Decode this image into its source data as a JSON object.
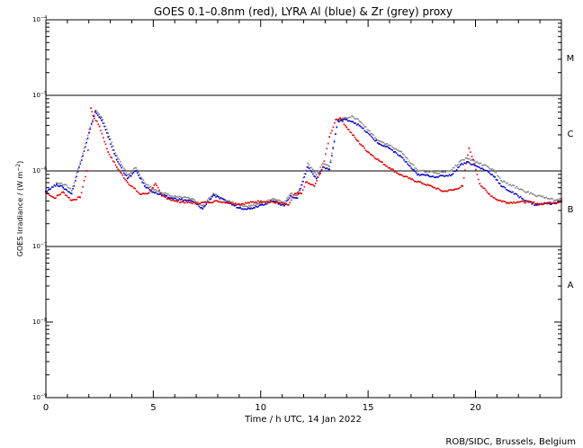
{
  "chart_data": {
    "type": "scatter",
    "title": "GOES 0.1–0.8nm (red), LYRA Al (blue) & Zr (grey) proxy",
    "xlabel": "Time / h UTC, 14 Jan 2022",
    "ylabel_main": "GOES Irradiance / (W m",
    "ylabel_sup": "−2",
    "ylabel_close": ")",
    "credit": "ROB/SIDC, Brussels, Belgium",
    "xlim": [
      0,
      24
    ],
    "ylim_log10": [
      -9,
      -4
    ],
    "y_scale": "log",
    "x_ticks": [
      {
        "value": 0,
        "label": "0"
      },
      {
        "value": 5,
        "label": "5"
      },
      {
        "value": 10,
        "label": "10"
      },
      {
        "value": 15,
        "label": "15"
      },
      {
        "value": 20,
        "label": "20"
      }
    ],
    "y_ticks": [
      {
        "exp": -4,
        "label": "10",
        "sup": "−4"
      },
      {
        "exp": -5,
        "label": "10",
        "sup": "−5"
      },
      {
        "exp": -6,
        "label": "10",
        "sup": "−6"
      },
      {
        "exp": -7,
        "label": "10",
        "sup": "−7"
      },
      {
        "exp": -8,
        "label": "10",
        "sup": "−8"
      }
    ],
    "flare_classes": [
      {
        "label": "M",
        "center_log10": -4.5
      },
      {
        "label": "C",
        "center_log10": -5.5
      },
      {
        "label": "B",
        "center_log10": -6.5
      },
      {
        "label": "A",
        "center_log10": -7.5
      }
    ],
    "class_boundaries_log10": [
      -5,
      -6,
      -7
    ],
    "series": [
      {
        "name": "GOES 0.1-0.8nm",
        "color": "#e00000",
        "x": [
          0.0,
          0.4,
          0.8,
          1.2,
          1.6,
          1.9,
          2.1,
          2.2,
          2.5,
          2.9,
          3.3,
          3.8,
          4.4,
          4.8,
          5.1,
          5.4,
          6.0,
          7.0,
          8.0,
          9.0,
          10.0,
          10.8,
          11.3,
          11.6,
          11.9,
          12.1,
          12.5,
          12.9,
          13.2,
          13.5,
          13.7,
          14.0,
          14.5,
          15.0,
          15.5,
          16.0,
          16.5,
          17.0,
          17.5,
          18.0,
          18.5,
          19.0,
          19.4,
          19.7,
          19.9,
          20.2,
          20.6,
          21.0,
          21.5,
          22.0,
          22.5,
          23.0,
          23.5,
          24.0
        ],
        "log10": [
          -6.28,
          -6.36,
          -6.28,
          -6.39,
          -6.35,
          -6.0,
          -5.17,
          -5.27,
          -5.41,
          -5.75,
          -5.95,
          -6.15,
          -6.31,
          -6.29,
          -6.17,
          -6.33,
          -6.4,
          -6.43,
          -6.4,
          -6.44,
          -6.4,
          -6.42,
          -6.45,
          -6.3,
          -6.3,
          -6.15,
          -6.2,
          -5.95,
          -5.55,
          -5.32,
          -5.3,
          -5.42,
          -5.6,
          -5.75,
          -5.86,
          -5.96,
          -6.05,
          -6.11,
          -6.16,
          -6.21,
          -6.27,
          -6.25,
          -6.2,
          -5.7,
          -5.85,
          -6.17,
          -6.3,
          -6.38,
          -6.42,
          -6.41,
          -6.41,
          -6.44,
          -6.42,
          -6.41
        ]
      },
      {
        "name": "LYRA Al proxy",
        "color": "#0000cc",
        "x": [
          0.0,
          0.5,
          0.8,
          1.2,
          2.3,
          2.6,
          2.9,
          3.3,
          3.8,
          4.2,
          4.6,
          5.0,
          5.8,
          6.8,
          7.3,
          7.8,
          8.5,
          9.0,
          9.5,
          10.0,
          10.6,
          11.1,
          11.4,
          11.7,
          12.2,
          12.6,
          12.9,
          13.2,
          13.6,
          14.0,
          14.3,
          14.6,
          15.5,
          16.0,
          16.2,
          16.5,
          17.3,
          17.8,
          18.2,
          18.9,
          19.3,
          19.6,
          20.6,
          20.9,
          21.2,
          22.4,
          22.8,
          23.3,
          23.7,
          24.0
        ],
        "log10": [
          -6.27,
          -6.18,
          -6.22,
          -6.3,
          -5.22,
          -5.33,
          -5.55,
          -5.85,
          -6.1,
          -6.0,
          -6.2,
          -6.28,
          -6.36,
          -6.4,
          -6.5,
          -6.32,
          -6.42,
          -6.49,
          -6.5,
          -6.45,
          -6.4,
          -6.46,
          -6.33,
          -6.36,
          -5.95,
          -6.1,
          -5.95,
          -5.98,
          -5.34,
          -5.32,
          -5.35,
          -5.4,
          -5.64,
          -5.7,
          -5.75,
          -5.8,
          -6.05,
          -6.06,
          -6.08,
          -6.05,
          -5.92,
          -5.88,
          -6.01,
          -6.08,
          -6.2,
          -6.4,
          -6.45,
          -6.43,
          -6.43,
          -6.4
        ]
      },
      {
        "name": "LYRA Zr proxy",
        "color": "#8a8a8a",
        "x": [
          0.5,
          0.9,
          1.2,
          2.3,
          2.6,
          2.9,
          3.3,
          3.8,
          4.2,
          4.6,
          5.0,
          5.8,
          6.8,
          7.3,
          7.8,
          8.5,
          9.0,
          9.5,
          10.0,
          10.6,
          11.1,
          11.4,
          11.7,
          12.2,
          12.6,
          12.9,
          13.2,
          13.6,
          14.0,
          14.3,
          14.6,
          15.5,
          16.0,
          16.2,
          16.5,
          17.3,
          17.8,
          18.2,
          18.9,
          19.3,
          19.6,
          20.6,
          20.9,
          21.2,
          22.4,
          22.8,
          23.3,
          23.7,
          24.0
        ],
        "log10": [
          -6.16,
          -6.18,
          -6.26,
          -5.2,
          -5.29,
          -5.5,
          -5.8,
          -6.05,
          -5.96,
          -6.16,
          -6.24,
          -6.33,
          -6.37,
          -6.46,
          -6.3,
          -6.4,
          -6.45,
          -6.47,
          -6.42,
          -6.37,
          -6.42,
          -6.3,
          -6.32,
          -5.9,
          -6.05,
          -5.9,
          -5.94,
          -5.32,
          -5.3,
          -5.28,
          -5.34,
          -5.6,
          -5.66,
          -5.7,
          -5.74,
          -5.99,
          -6.01,
          -6.03,
          -5.99,
          -5.87,
          -5.83,
          -5.95,
          -6.01,
          -6.13,
          -6.28,
          -6.33,
          -6.35,
          -6.39,
          -6.37
        ]
      }
    ]
  }
}
